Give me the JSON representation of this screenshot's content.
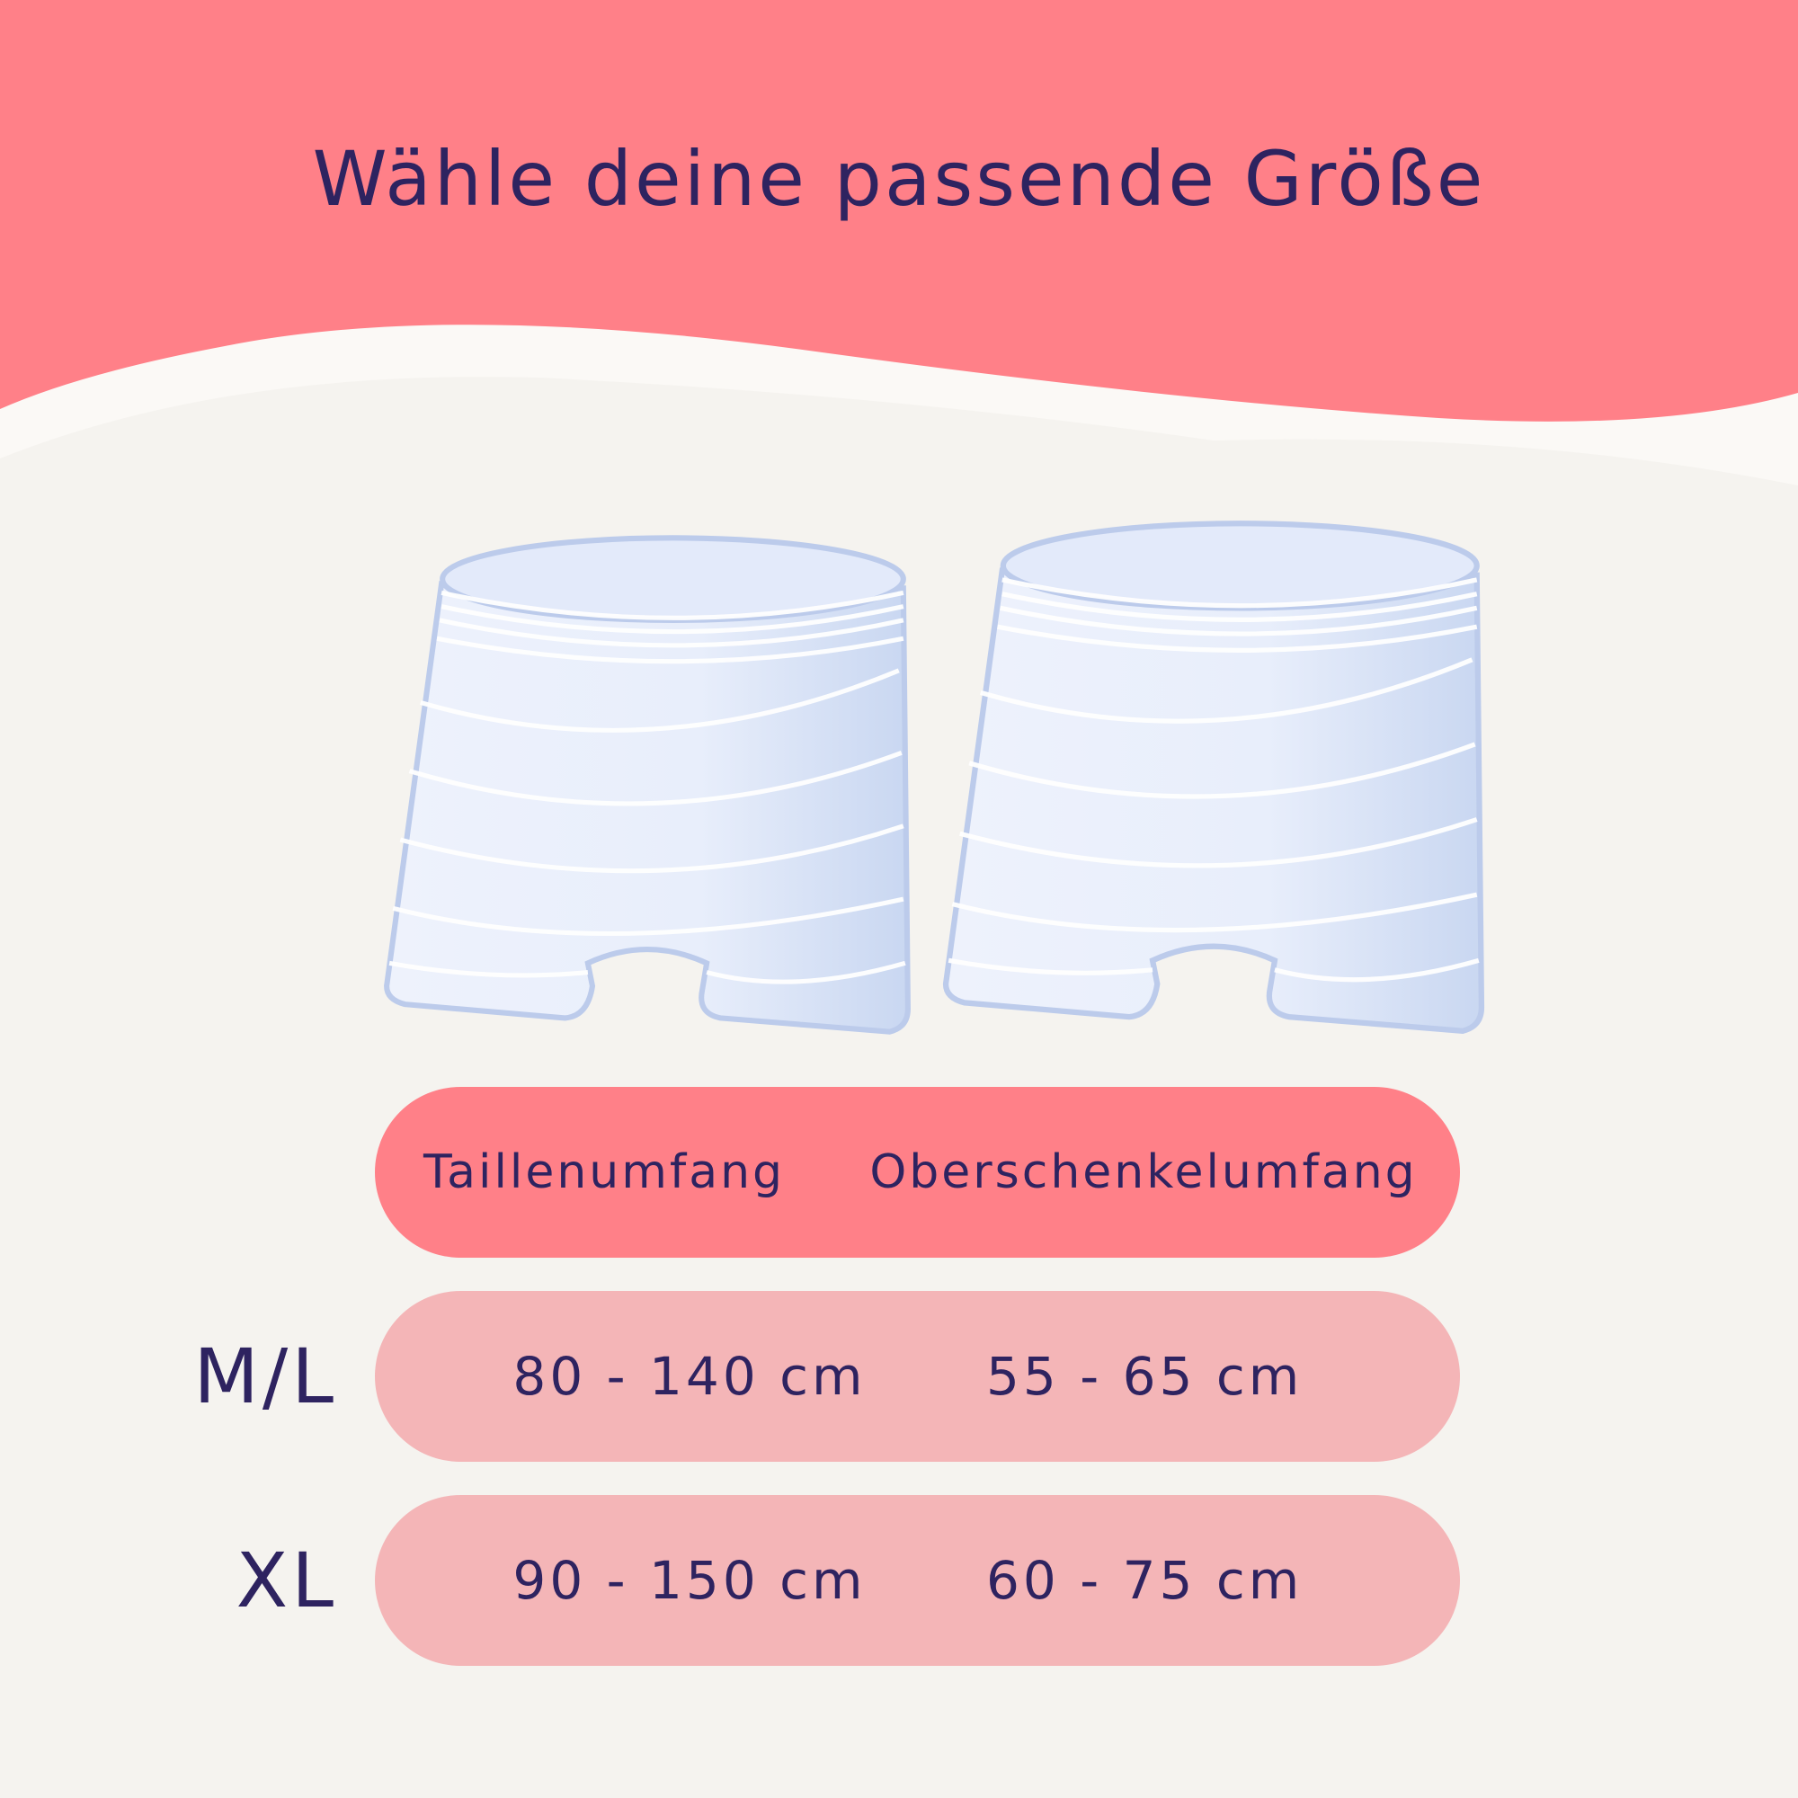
{
  "title": "Wähle deine passende Größe",
  "colors": {
    "header": "#ff8088",
    "row": "#f4b5b7",
    "background": "#f5f3ef",
    "text": "#2e2360"
  },
  "product_images": [
    "mesh-shorts-icon",
    "mesh-shorts-icon"
  ],
  "table": {
    "headers": [
      "Taillenumfang",
      "Oberschenkelumfang"
    ],
    "rows": [
      {
        "size": "M/L",
        "waist": "80 - 140 cm",
        "thigh": "55 - 65 cm"
      },
      {
        "size": "XL",
        "waist": "90 - 150 cm",
        "thigh": "60 - 75 cm"
      }
    ]
  }
}
